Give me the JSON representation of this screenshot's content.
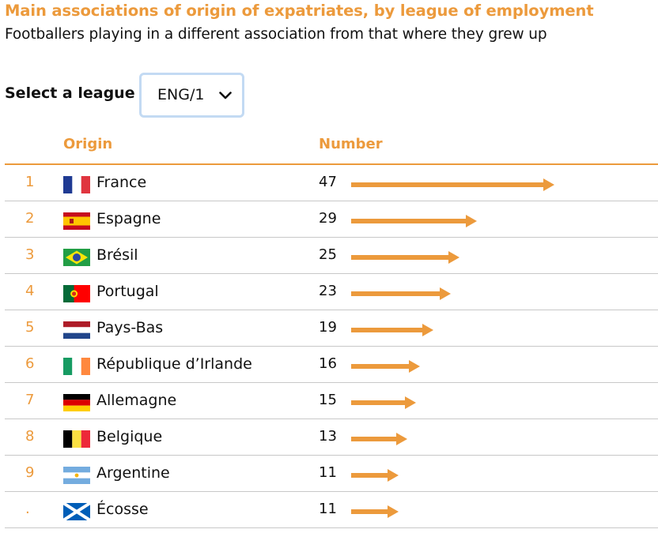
{
  "header": {
    "title": "Main associations of origin of expatriates, by league of employment",
    "subtitle": "Footballers playing in a different association from that where they grew up"
  },
  "selector": {
    "label": "Select a league",
    "value": "ENG/1"
  },
  "table": {
    "origin_header": "Origin",
    "number_header": "Number"
  },
  "colors": {
    "accent": "#ec9a3c",
    "bar": "#ec9a3c",
    "rule": "#c8c8c8",
    "select_border": "#c3daf3"
  },
  "chart_data": {
    "type": "bar",
    "title": "Main associations of origin of expatriates, by league of employment",
    "subtitle": "Footballers playing in a different association from that where they grew up",
    "xlim": [
      0,
      47
    ],
    "rows": [
      {
        "rank": "1",
        "country": "France",
        "value": 47,
        "flag_icon": "flag-france-icon"
      },
      {
        "rank": "2",
        "country": "Espagne",
        "value": 29,
        "flag_icon": "flag-spain-icon"
      },
      {
        "rank": "3",
        "country": "Brésil",
        "value": 25,
        "flag_icon": "flag-brazil-icon"
      },
      {
        "rank": "4",
        "country": "Portugal",
        "value": 23,
        "flag_icon": "flag-portugal-icon"
      },
      {
        "rank": "5",
        "country": "Pays-Bas",
        "value": 19,
        "flag_icon": "flag-netherlands-icon"
      },
      {
        "rank": "6",
        "country": "République d’Irlande",
        "value": 16,
        "flag_icon": "flag-ireland-icon"
      },
      {
        "rank": "7",
        "country": "Allemagne",
        "value": 15,
        "flag_icon": "flag-germany-icon"
      },
      {
        "rank": "8",
        "country": "Belgique",
        "value": 13,
        "flag_icon": "flag-belgium-icon"
      },
      {
        "rank": "9",
        "country": "Argentine",
        "value": 11,
        "flag_icon": "flag-argentina-icon"
      },
      {
        "rank": ".",
        "country": "Écosse",
        "value": 11,
        "flag_icon": "flag-scotland-icon"
      }
    ]
  }
}
